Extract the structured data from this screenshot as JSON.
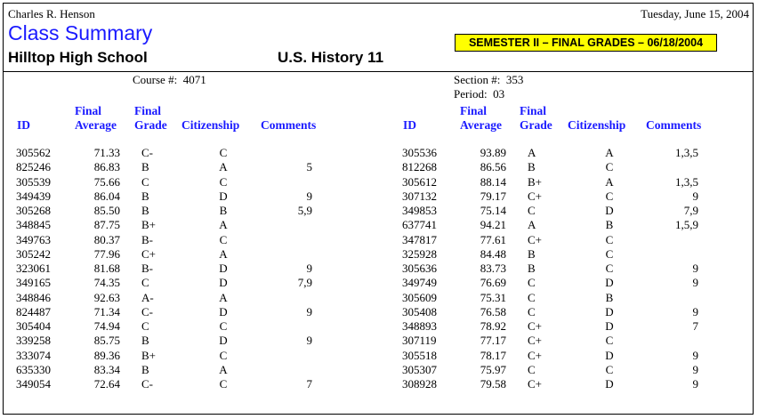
{
  "header": {
    "teacher": "Charles R. Henson",
    "date": "Tuesday, June 15, 2004",
    "title": "Class Summary",
    "school": "Hilltop High School",
    "course_name": "U.S. History 11",
    "banner": "SEMESTER II – FINAL GRADES – 06/18/2004"
  },
  "meta": {
    "course_label": "Course #:",
    "course_value": "4071",
    "section_label": "Section #:",
    "section_value": "353",
    "period_label": "Period:",
    "period_value": "03"
  },
  "columns": {
    "id": "ID",
    "avg_line1": "Final",
    "avg_line2": "Average",
    "grade_line1": "Final",
    "grade_line2": "Grade",
    "citizenship": "Citizenship",
    "comments": "Comments"
  },
  "colors": {
    "accent": "#1a1aff",
    "banner_bg": "#ffff00"
  },
  "left_rows": [
    {
      "id": "305562",
      "avg": "71.33",
      "grade": "C-",
      "cit": "C",
      "comments": ""
    },
    {
      "id": "825246",
      "avg": "86.83",
      "grade": "B",
      "cit": "A",
      "comments": "5"
    },
    {
      "id": "305539",
      "avg": "75.66",
      "grade": "C",
      "cit": "C",
      "comments": ""
    },
    {
      "id": "349439",
      "avg": "86.04",
      "grade": "B",
      "cit": "D",
      "comments": "9"
    },
    {
      "id": "305268",
      "avg": "85.50",
      "grade": "B",
      "cit": "B",
      "comments": "5,9"
    },
    {
      "id": "348845",
      "avg": "87.75",
      "grade": "B+",
      "cit": "A",
      "comments": ""
    },
    {
      "id": "349763",
      "avg": "80.37",
      "grade": "B-",
      "cit": "C",
      "comments": ""
    },
    {
      "id": "305242",
      "avg": "77.96",
      "grade": "C+",
      "cit": "A",
      "comments": ""
    },
    {
      "id": "323061",
      "avg": "81.68",
      "grade": "B-",
      "cit": "D",
      "comments": "9"
    },
    {
      "id": "349165",
      "avg": "74.35",
      "grade": "C",
      "cit": "D",
      "comments": "7,9"
    },
    {
      "id": "348846",
      "avg": "92.63",
      "grade": "A-",
      "cit": "A",
      "comments": ""
    },
    {
      "id": "824487",
      "avg": "71.34",
      "grade": "C-",
      "cit": "D",
      "comments": "9"
    },
    {
      "id": "305404",
      "avg": "74.94",
      "grade": "C",
      "cit": "C",
      "comments": ""
    },
    {
      "id": "339258",
      "avg": "85.75",
      "grade": "B",
      "cit": "D",
      "comments": "9"
    },
    {
      "id": "333074",
      "avg": "89.36",
      "grade": "B+",
      "cit": "C",
      "comments": ""
    },
    {
      "id": "635330",
      "avg": "83.34",
      "grade": "B",
      "cit": "A",
      "comments": ""
    },
    {
      "id": "349054",
      "avg": "72.64",
      "grade": "C-",
      "cit": "C",
      "comments": "7"
    }
  ],
  "right_rows": [
    {
      "id": "305536",
      "avg": "93.89",
      "grade": "A",
      "cit": "A",
      "comments": "1,3,5"
    },
    {
      "id": "812268",
      "avg": "86.56",
      "grade": "B",
      "cit": "C",
      "comments": ""
    },
    {
      "id": "305612",
      "avg": "88.14",
      "grade": "B+",
      "cit": "A",
      "comments": "1,3,5"
    },
    {
      "id": "307132",
      "avg": "79.17",
      "grade": "C+",
      "cit": "C",
      "comments": "9"
    },
    {
      "id": "349853",
      "avg": "75.14",
      "grade": "C",
      "cit": "D",
      "comments": "7,9"
    },
    {
      "id": "637741",
      "avg": "94.21",
      "grade": "A",
      "cit": "B",
      "comments": "1,5,9"
    },
    {
      "id": "347817",
      "avg": "77.61",
      "grade": "C+",
      "cit": "C",
      "comments": ""
    },
    {
      "id": "325928",
      "avg": "84.48",
      "grade": "B",
      "cit": "C",
      "comments": ""
    },
    {
      "id": "305636",
      "avg": "83.73",
      "grade": "B",
      "cit": "C",
      "comments": "9"
    },
    {
      "id": "349749",
      "avg": "76.69",
      "grade": "C",
      "cit": "D",
      "comments": "9"
    },
    {
      "id": "305609",
      "avg": "75.31",
      "grade": "C",
      "cit": "B",
      "comments": ""
    },
    {
      "id": "305408",
      "avg": "76.58",
      "grade": "C",
      "cit": "D",
      "comments": "9"
    },
    {
      "id": "348893",
      "avg": "78.92",
      "grade": "C+",
      "cit": "D",
      "comments": "7"
    },
    {
      "id": "307119",
      "avg": "77.17",
      "grade": "C+",
      "cit": "C",
      "comments": ""
    },
    {
      "id": "305518",
      "avg": "78.17",
      "grade": "C+",
      "cit": "D",
      "comments": "9"
    },
    {
      "id": "305307",
      "avg": "75.97",
      "grade": "C",
      "cit": "C",
      "comments": "9"
    },
    {
      "id": "308928",
      "avg": "79.58",
      "grade": "C+",
      "cit": "D",
      "comments": "9"
    }
  ]
}
